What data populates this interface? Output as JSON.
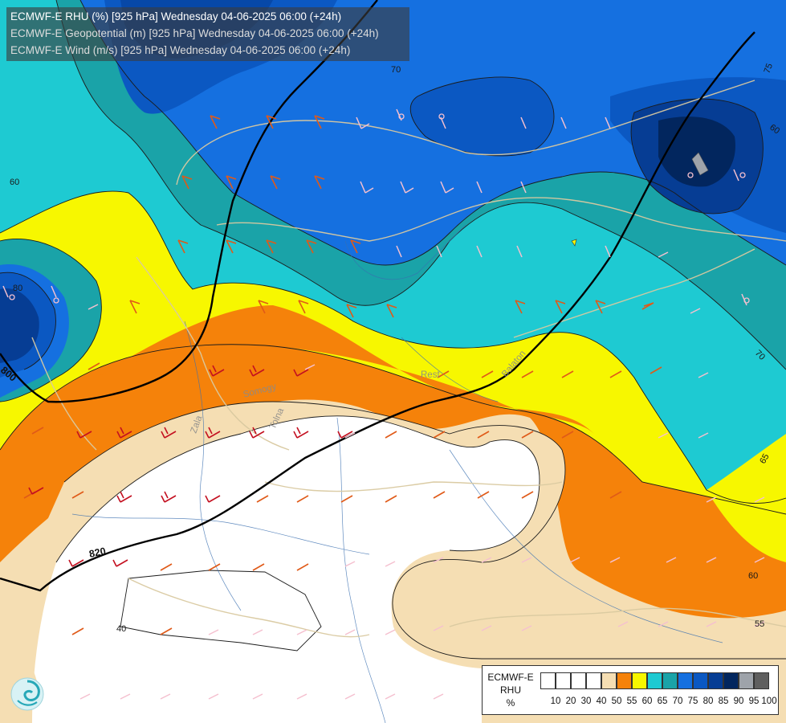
{
  "header": {
    "line1": "ECMWF-E RHU (%) [925 hPa] Wednesday 04-06-2025 06:00 (+24h)",
    "line2": "ECMWF-E Geopotential (m) [925 hPa] Wednesday 04-06-2025 06:00 (+24h)",
    "line3": "ECMWF-E Wind (m/s) [925 hPa] Wednesday 04-06-2025 06:00 (+24h)"
  },
  "legend": {
    "title_lines": [
      "ECMWF-E",
      "RHU",
      "%"
    ],
    "ticks": [
      "10",
      "20",
      "30",
      "40",
      "50",
      "55",
      "60",
      "65",
      "70",
      "75",
      "80",
      "85",
      "90",
      "95",
      "100"
    ],
    "colors": [
      "#ffffff",
      "#ffffff",
      "#ffffff",
      "#ffffff",
      "#f5deb3",
      "#f5820a",
      "#f7f700",
      "#1ecad2",
      "#1aa3a8",
      "#1570e0",
      "#0b58c2",
      "#063d94",
      "#02265e",
      "#9ea3aa",
      "#5f5f5f"
    ]
  },
  "contour_labels": {
    "rhu": [
      "75",
      "60",
      "70",
      "60",
      "80",
      "70",
      "65",
      "60",
      "55",
      "40"
    ],
    "geopotential": [
      "820",
      "800"
    ]
  },
  "place_labels": [
    "Rest",
    "Balaton",
    "Somogy",
    "Zala",
    "Tolna"
  ],
  "icons": [
    "weather-service-logo-icon"
  ]
}
